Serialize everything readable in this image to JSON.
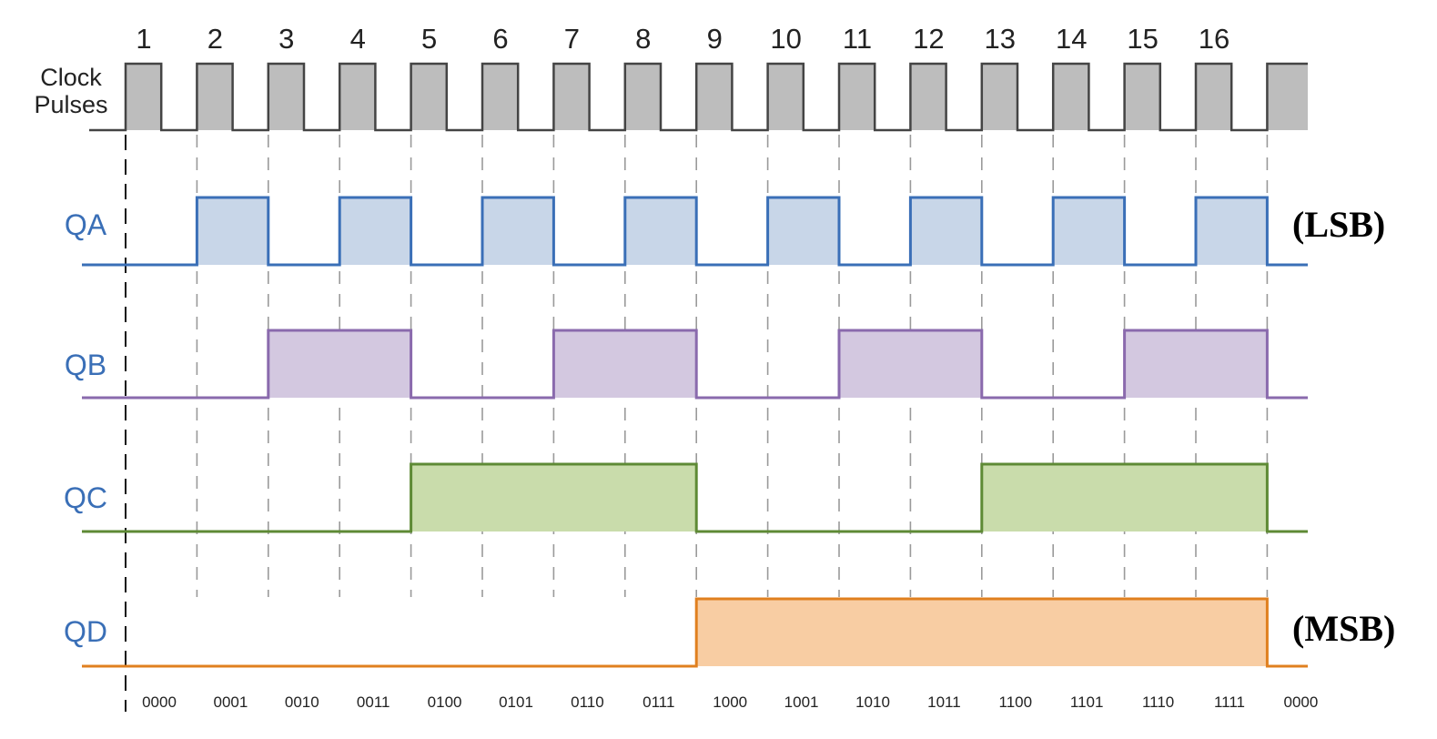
{
  "clock": {
    "label_lines": [
      "Clock",
      "Pulses"
    ],
    "pulse_numbers": [
      "1",
      "2",
      "3",
      "4",
      "5",
      "6",
      "7",
      "8",
      "9",
      "10",
      "11",
      "12",
      "13",
      "14",
      "15",
      "16"
    ],
    "color": "#444444",
    "fill": "#bdbdbd"
  },
  "signals": [
    {
      "name": "QA",
      "color": "#3a6fb7",
      "fill": "#c8d6e8",
      "levels": [
        0,
        1,
        0,
        1,
        0,
        1,
        0,
        1,
        0,
        1,
        0,
        1,
        0,
        1,
        0,
        1
      ]
    },
    {
      "name": "QB",
      "color": "#8a6aad",
      "fill": "#d3c8e0",
      "levels": [
        0,
        0,
        1,
        1,
        0,
        0,
        1,
        1,
        0,
        0,
        1,
        1,
        0,
        0,
        1,
        1
      ]
    },
    {
      "name": "QC",
      "color": "#5e8a35",
      "fill": "#c9dcab",
      "levels": [
        0,
        0,
        0,
        0,
        1,
        1,
        1,
        1,
        0,
        0,
        0,
        0,
        1,
        1,
        1,
        1
      ]
    },
    {
      "name": "QD",
      "color": "#e0801f",
      "fill": "#f8cda3",
      "levels": [
        0,
        0,
        0,
        0,
        0,
        0,
        0,
        0,
        1,
        1,
        1,
        1,
        1,
        1,
        1,
        1
      ]
    }
  ],
  "bit_labels": {
    "lsb": "(LSB)",
    "msb": "(MSB)"
  },
  "states": [
    "0000",
    "0001",
    "0010",
    "0011",
    "0100",
    "0101",
    "0110",
    "0111",
    "1000",
    "1001",
    "1010",
    "1011",
    "1100",
    "1101",
    "1110",
    "1111",
    "0000"
  ],
  "label_color": "#3a6fb7"
}
